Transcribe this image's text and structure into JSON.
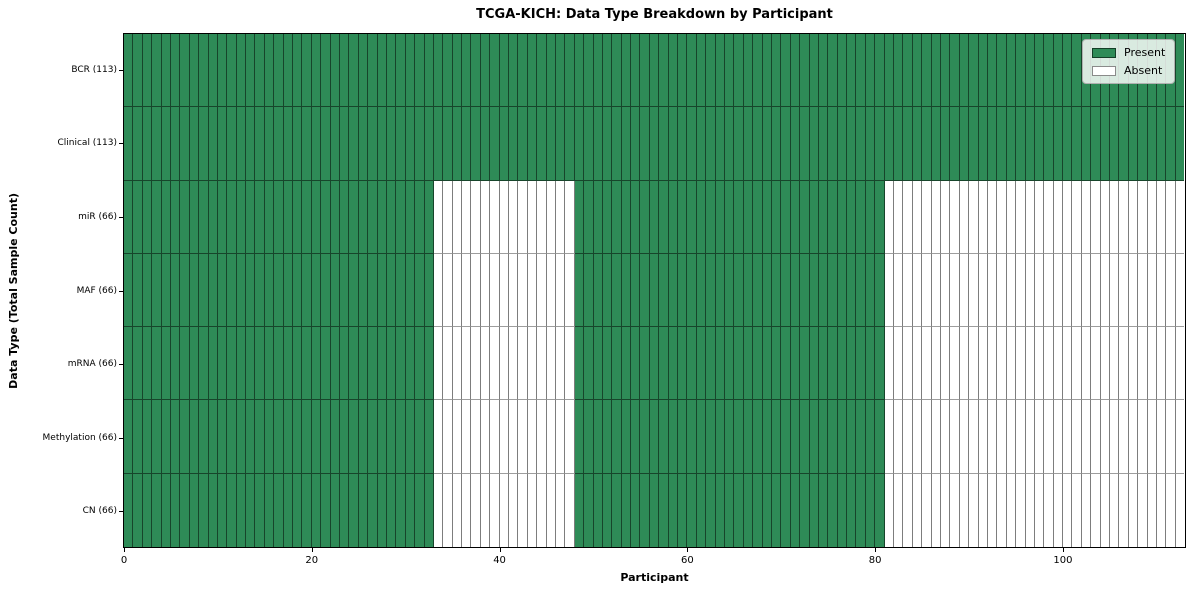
{
  "chart_data": {
    "type": "heatmap",
    "title": "TCGA-KICH: Data Type Breakdown by Participant",
    "xlabel": "Participant",
    "ylabel": "Data Type (Total Sample Count)",
    "n_participants": 113,
    "x_range": [
      0,
      113
    ],
    "xticks": [
      0,
      20,
      40,
      60,
      80,
      100
    ],
    "rows": [
      {
        "data_type": "BCR",
        "label": "BCR (113)",
        "sample_count": 113,
        "present_ranges": [
          [
            0,
            112
          ]
        ]
      },
      {
        "data_type": "Clinical",
        "label": "Clinical (113)",
        "sample_count": 113,
        "present_ranges": [
          [
            0,
            112
          ]
        ]
      },
      {
        "data_type": "miR",
        "label": "miR (66)",
        "sample_count": 66,
        "present_ranges": [
          [
            0,
            32
          ],
          [
            48,
            80
          ]
        ]
      },
      {
        "data_type": "MAF",
        "label": "MAF (66)",
        "sample_count": 66,
        "present_ranges": [
          [
            0,
            32
          ],
          [
            48,
            80
          ]
        ]
      },
      {
        "data_type": "mRNA",
        "label": "mRNA (66)",
        "sample_count": 66,
        "present_ranges": [
          [
            0,
            32
          ],
          [
            48,
            80
          ]
        ]
      },
      {
        "data_type": "Methylation",
        "label": "Methylation (66)",
        "sample_count": 66,
        "present_ranges": [
          [
            0,
            32
          ],
          [
            48,
            80
          ]
        ]
      },
      {
        "data_type": "CN",
        "label": "CN (66)",
        "sample_count": 66,
        "present_ranges": [
          [
            0,
            32
          ],
          [
            48,
            80
          ]
        ]
      }
    ],
    "legend": [
      {
        "label": "Present",
        "color": "#2e8b57"
      },
      {
        "label": "Absent",
        "color": "#ffffff"
      }
    ],
    "colors": {
      "present": "#2e8b57",
      "absent": "#ffffff",
      "cell_edge": "#555555",
      "spine": "#000000"
    },
    "legend_position": "upper right",
    "grid": false
  }
}
